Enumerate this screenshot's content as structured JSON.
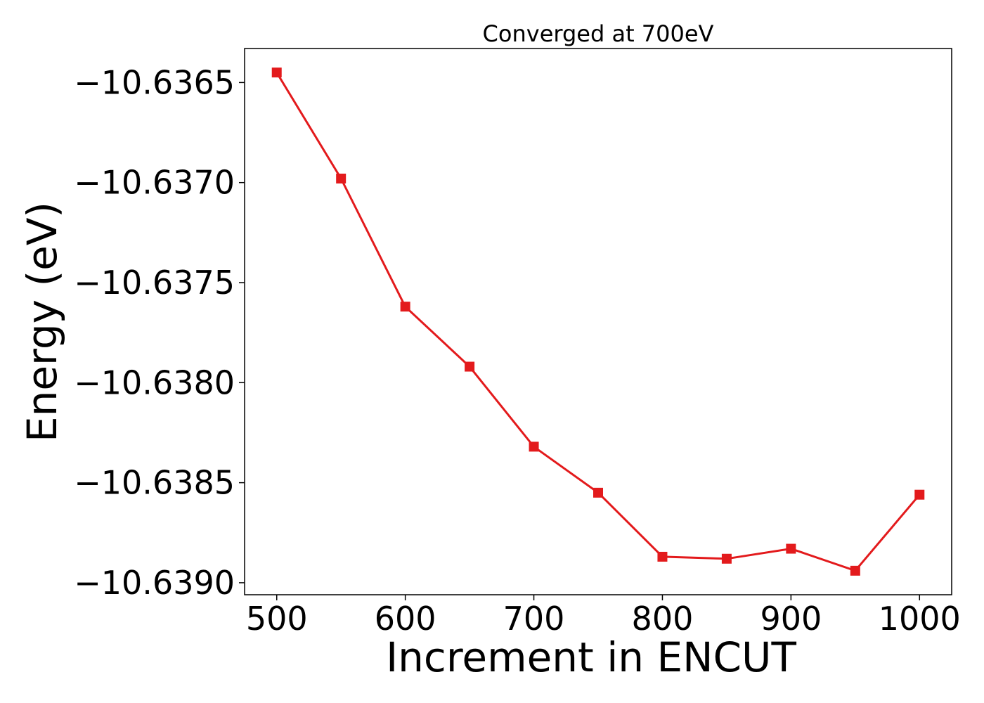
{
  "chart_data": {
    "type": "line",
    "title": "Converged at 700eV",
    "xlabel": "Increment in ENCUT",
    "ylabel": "Energy (eV)",
    "x": [
      500,
      550,
      600,
      650,
      700,
      750,
      800,
      850,
      900,
      950,
      1000
    ],
    "series": [
      {
        "color": "#e31a1c",
        "marker": "square",
        "values": [
          -10.63645,
          -10.63698,
          -10.63762,
          -10.63792,
          -10.63832,
          -10.63855,
          -10.63887,
          -10.63888,
          -10.63883,
          -10.63894,
          -10.63856
        ]
      }
    ],
    "xlim": [
      475,
      1025
    ],
    "ylim": [
      -10.63906,
      -10.63633
    ],
    "xticks": [
      500,
      600,
      700,
      800,
      900,
      1000
    ],
    "xtick_labels": [
      "500",
      "600",
      "700",
      "800",
      "900",
      "1000"
    ],
    "yticks": [
      -10.6365,
      -10.637,
      -10.6375,
      -10.638,
      -10.6385,
      -10.639
    ],
    "ytick_labels": [
      "−10.6365",
      "−10.6370",
      "−10.6375",
      "−10.6380",
      "−10.6385",
      "−10.6390"
    ],
    "grid": false,
    "legend": "none"
  }
}
